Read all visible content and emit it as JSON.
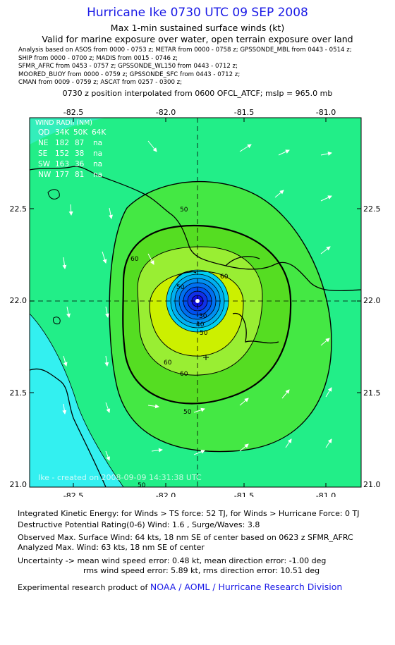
{
  "header": {
    "title": "Hurricane Ike 0730 UTC 09 SEP 2008",
    "subtitle": "Max 1-min sustained surface winds (kt)",
    "valid_for": "Valid for marine exposure over water, open terrain exposure over land"
  },
  "analysis_lines": [
    "Analysis based on  ASOS from 0000 - 0753 z;  METAR from 0000 - 0758 z;  GPSSONDE_MBL from 0443 - 0514 z;",
    "SHIP from 0000 - 0700 z;  MADIS from 0015 - 0746 z;",
    "SFMR_AFRC from 0453 - 0757 z;  GPSSONDE_WL150 from 0443 - 0712 z;",
    "MOORED_BUOY from 0000 - 0759 z;  GPSSONDE_SFC from 0443 - 0712 z;",
    "CMAN from 0009 - 0759 z;  ASCAT from 0257 - 0300 z;"
  ],
  "position_line": "0730 z position interpolated from 0600 OFCL_ATCF; mslp = 965.0 mb",
  "map": {
    "lon_ticks": [
      "-82.5",
      "-82.0",
      "-81.5",
      "-81.0"
    ],
    "lat_ticks": [
      "22.5",
      "22.0",
      "21.5",
      "21.0"
    ],
    "contour_labels": [
      "50",
      "60",
      "60",
      "50",
      "30",
      "40",
      "50",
      "60",
      "60",
      "50",
      "50"
    ],
    "watermark": "Ike - created on 2008-09-09  14:31:38 UTC",
    "colors": {
      "ocean_low": "#33f0f0",
      "band_34": "#22ee88",
      "band_50": "#44e844",
      "band_60": "#99ee33",
      "band_64": "#ccf000",
      "eye_blue": "#1010e0"
    }
  },
  "wind_radii": {
    "title": "WIND RADII (NM)",
    "header": [
      "QD",
      "34K",
      "50K",
      "64K"
    ],
    "rows": [
      [
        "NE",
        "182",
        "87",
        "na"
      ],
      [
        "SE",
        "152",
        "38",
        "na"
      ],
      [
        "SW",
        "163",
        "36",
        "na"
      ],
      [
        "NW",
        "177",
        "81",
        "na"
      ]
    ]
  },
  "footer": {
    "ike": "Integrated Kinetic Energy:  for Winds > TS force: 52 TJ,  for Winds > Hurricane Force: 0 TJ",
    "dpr": "Destructive Potential Rating(0-6)   Wind: 1.6 , Surge/Waves: 3.8",
    "observed": "Observed Max. Surface Wind: 64 kts, 18 nm SE of center based on 0623 z SFMR_AFRC",
    "analyzed": "Analyzed Max. Wind: 63 kts, 18 nm SE of center",
    "uncertainty1": "Uncertainty -> mean wind speed error: 0.48 kt,   mean direction error:  -1.00 deg",
    "uncertainty2": "rms wind speed error: 5.89 kt,   rms direction error: 10.51 deg",
    "credit_prefix": "Experimental research product of ",
    "credit_org": "NOAA / AOML / Hurricane Research Division"
  }
}
